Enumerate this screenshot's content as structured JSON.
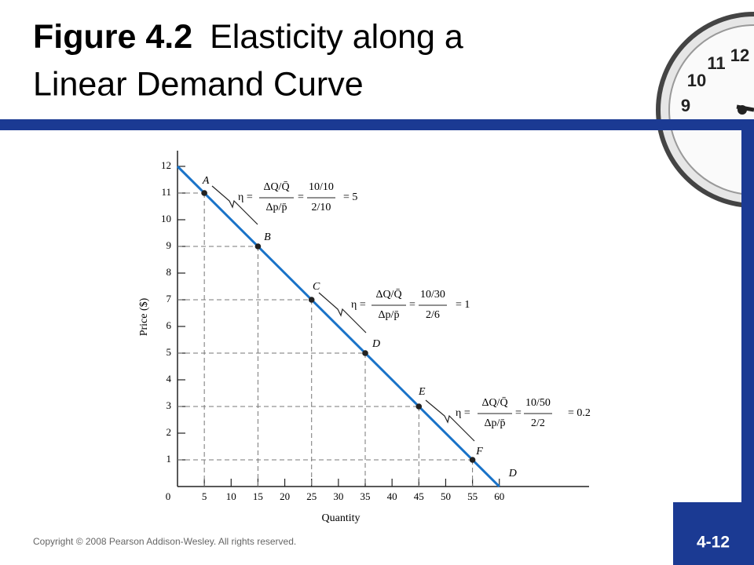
{
  "slide": {
    "title_bold": "Figure 4.2",
    "title_rest": "Elasticity along a",
    "title_line2": "Linear Demand Curve",
    "copyright": "Copyright © 2008 Pearson Addison-Wesley. All rights reserved.",
    "page_number": "4-12",
    "clock_numbers": [
      "12",
      "11",
      "10",
      "9"
    ]
  },
  "chart_data": {
    "type": "line",
    "x_label": "Quantity",
    "y_label": "Price ($)",
    "xlim": [
      0,
      76
    ],
    "ylim": [
      0,
      12.6
    ],
    "xticks": [
      0,
      5,
      10,
      15,
      20,
      25,
      30,
      35,
      40,
      45,
      50,
      55,
      60
    ],
    "yticks": [
      1,
      2,
      3,
      4,
      5,
      6,
      7,
      8,
      9,
      10,
      11,
      12
    ],
    "series": [
      {
        "name": "D",
        "color": "#1a73c8",
        "x": [
          0,
          60
        ],
        "values": [
          12,
          0
        ]
      }
    ],
    "points": {
      "labels": [
        "A",
        "B",
        "C",
        "D",
        "E",
        "F"
      ],
      "x": [
        5,
        15,
        25,
        35,
        45,
        55
      ],
      "values": [
        11,
        9,
        7,
        5,
        3,
        1
      ]
    },
    "annotations": [
      {
        "eta": "η =",
        "num": "ΔQ/Q̄",
        "den": "Δp/p̄",
        "eq": "=",
        "frac_num": "10/10",
        "frac_den": "2/10",
        "result": "= 5"
      },
      {
        "eta": "η =",
        "num": "ΔQ/Q̄",
        "den": "Δp/p̄",
        "eq": "=",
        "frac_num": "10/30",
        "frac_den": "2/6",
        "result": "= 1"
      },
      {
        "eta": "η =",
        "num": "ΔQ/Q̄",
        "den": "Δp/p̄",
        "eq": "=",
        "frac_num": "10/50",
        "frac_den": "2/2",
        "result": "= 0.2"
      }
    ]
  }
}
